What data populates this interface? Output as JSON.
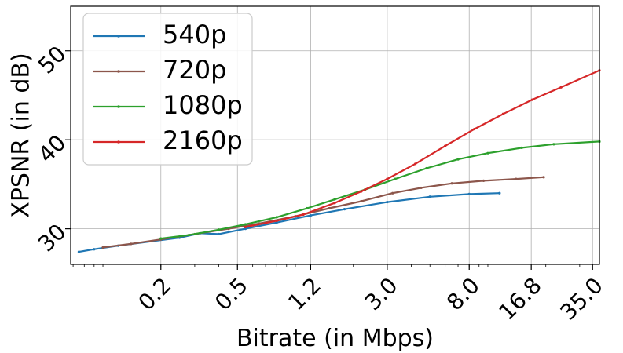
{
  "chart_data": {
    "type": "line",
    "title": "",
    "xlabel": "Bitrate (in Mbps)",
    "ylabel": "XPSNR (in dB)",
    "x_scale": "log",
    "xlim": [
      0.068,
      38
    ],
    "ylim": [
      26,
      55
    ],
    "xticks": [
      0.2,
      0.5,
      1.2,
      3.0,
      8.0,
      16.8,
      35.0
    ],
    "xtick_labels": [
      "0.2",
      "0.5",
      "1.2",
      "3.0",
      "8.0",
      "16.8",
      "35.0"
    ],
    "yticks": [
      30,
      40,
      50
    ],
    "ytick_labels": [
      "30",
      "40",
      "50"
    ],
    "grid": true,
    "legend_position": "top-left",
    "colors": {
      "540p": "#1f77b4",
      "720p": "#8c564b",
      "1080p": "#2ca02c",
      "2160p": "#d62728"
    },
    "series": [
      {
        "name": "540p",
        "x": [
          0.075,
          0.09,
          0.12,
          0.18,
          0.25,
          0.32,
          0.4,
          0.55,
          0.8,
          1.2,
          1.8,
          3.0,
          5.0,
          8.0,
          11.5
        ],
        "y": [
          27.4,
          27.7,
          28.1,
          28.6,
          29.0,
          29.5,
          29.4,
          30.0,
          30.7,
          31.5,
          32.2,
          33.0,
          33.6,
          33.9,
          34.0
        ]
      },
      {
        "name": "720p",
        "x": [
          0.1,
          0.14,
          0.2,
          0.3,
          0.45,
          0.65,
          1.0,
          1.5,
          2.2,
          3.2,
          4.5,
          6.5,
          9.5,
          14.0,
          19.5
        ],
        "y": [
          27.9,
          28.3,
          28.8,
          29.4,
          30.0,
          30.6,
          31.4,
          32.3,
          33.1,
          34.0,
          34.6,
          35.1,
          35.4,
          35.6,
          35.8
        ]
      },
      {
        "name": "1080p",
        "x": [
          0.2,
          0.28,
          0.4,
          0.55,
          0.8,
          1.15,
          1.6,
          2.3,
          3.3,
          4.8,
          7.0,
          10.0,
          15.0,
          22.0,
          38.0
        ],
        "y": [
          28.9,
          29.3,
          29.9,
          30.5,
          31.3,
          32.3,
          33.3,
          34.4,
          35.6,
          36.8,
          37.8,
          38.5,
          39.1,
          39.5,
          39.8
        ]
      },
      {
        "name": "2160p",
        "x": [
          0.55,
          0.8,
          1.1,
          1.6,
          2.2,
          3.0,
          4.2,
          6.0,
          8.5,
          12.0,
          17.0,
          24.0,
          38.0
        ],
        "y": [
          30.2,
          30.9,
          31.6,
          32.9,
          34.2,
          35.6,
          37.3,
          39.3,
          41.2,
          42.9,
          44.5,
          45.9,
          47.8
        ]
      }
    ]
  }
}
